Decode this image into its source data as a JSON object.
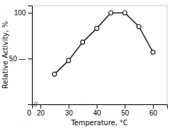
{
  "chart_data": {
    "type": "line",
    "x": [
      25,
      30,
      35,
      40,
      45,
      50,
      55,
      60
    ],
    "y": [
      33,
      48,
      68,
      83,
      100,
      100,
      85,
      57
    ],
    "xlabel": "Temperature, °C",
    "ylabel": "Relative Activity, %",
    "xlim": [
      17,
      65
    ],
    "ylim": [
      0,
      108
    ],
    "xticks": [
      20,
      30,
      40,
      50,
      60
    ],
    "yticks": [
      {
        "value": 50,
        "label": "50 —"
      },
      100
    ],
    "annotations": [
      "0",
      "//"
    ],
    "color": "#1a1a1a",
    "marker": "circle"
  }
}
